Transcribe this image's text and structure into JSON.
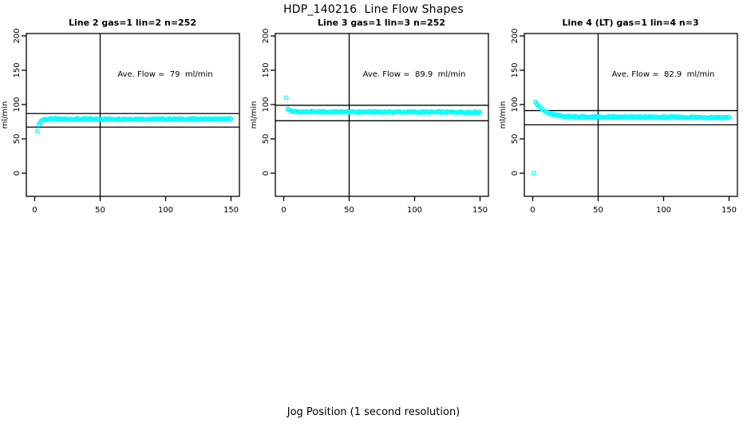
{
  "chart_data": {
    "type": "scatter",
    "figure_title": "HDP_140216  Line Flow Shapes",
    "xlabel": "Jog Position (1 second resolution)",
    "point_color": "#00FFFF",
    "line_color": "#000000",
    "x_ticks": [
      0,
      50,
      100,
      150
    ],
    "y_ticks": [
      0,
      50,
      100,
      150,
      200
    ],
    "xlim": [
      -6.4,
      156.4
    ],
    "ylim": [
      -33.7,
      203.5
    ],
    "vline_x": 50,
    "annotation_pos": {
      "x": 100,
      "y": 144
    },
    "panels": [
      {
        "title": "Line 2 gas=1 lin=2 n=252",
        "ylabel": "ml/min",
        "ave_flow_text": "Ave. Flow =  79  ml/min",
        "ave_flow_value": 79,
        "n": 252,
        "ref_lines": [
          86.9,
          67.2
        ],
        "outliers": [],
        "series_model": {
          "x_start": 2,
          "x_end": 150,
          "step": 1,
          "y0": 62,
          "plateau": 79,
          "tau": 1.6,
          "drift": -0.0007,
          "jitter": 0.9
        },
        "sampled_points": [
          [
            2,
            62
          ],
          [
            3,
            70
          ],
          [
            5,
            76.4
          ],
          [
            10,
            78.9
          ],
          [
            20,
            79
          ],
          [
            50,
            79
          ],
          [
            100,
            78.9
          ],
          [
            150,
            78.8
          ]
        ]
      },
      {
        "title": "Line 3 gas=1 lin=3 n=252",
        "ylabel": "ml/min",
        "ave_flow_text": "Ave. Flow =  89.9  ml/min",
        "ave_flow_value": 89.9,
        "n": 252,
        "ref_lines": [
          98.9,
          76.4
        ],
        "outliers": [
          [
            2,
            110
          ]
        ],
        "series_model": {
          "x_start": 3,
          "x_end": 150,
          "step": 1,
          "y0": 93.8,
          "plateau": 89.5,
          "tau": 2.5,
          "drift": -0.004,
          "jitter": 0.9
        },
        "sampled_points": [
          [
            2,
            110
          ],
          [
            3,
            93.8
          ],
          [
            5,
            91.4
          ],
          [
            10,
            89.8
          ],
          [
            20,
            89.4
          ],
          [
            50,
            89.3
          ],
          [
            100,
            89.1
          ],
          [
            150,
            88.9
          ]
        ]
      },
      {
        "title": "Line 4 (LT) gas=1 lin=4 n=3",
        "ylabel": "ml/min",
        "ave_flow_text": "Ave. Flow =  82.9  ml/min",
        "ave_flow_value": 82.9,
        "n": 3,
        "ref_lines": [
          91.2,
          70.5
        ],
        "outliers": [
          [
            1,
            0
          ]
        ],
        "series_model": {
          "x_start": 2,
          "x_end": 150,
          "step": 1,
          "y0": 105,
          "plateau": 82.2,
          "tau": 7,
          "drift": -0.006,
          "jitter": 1.1
        },
        "sampled_points": [
          [
            1,
            0
          ],
          [
            2,
            105
          ],
          [
            5,
            96.9
          ],
          [
            10,
            89.3
          ],
          [
            20,
            83.8
          ],
          [
            30,
            82.4
          ],
          [
            50,
            81.9
          ],
          [
            100,
            81.6
          ],
          [
            150,
            81.3
          ]
        ]
      }
    ]
  }
}
